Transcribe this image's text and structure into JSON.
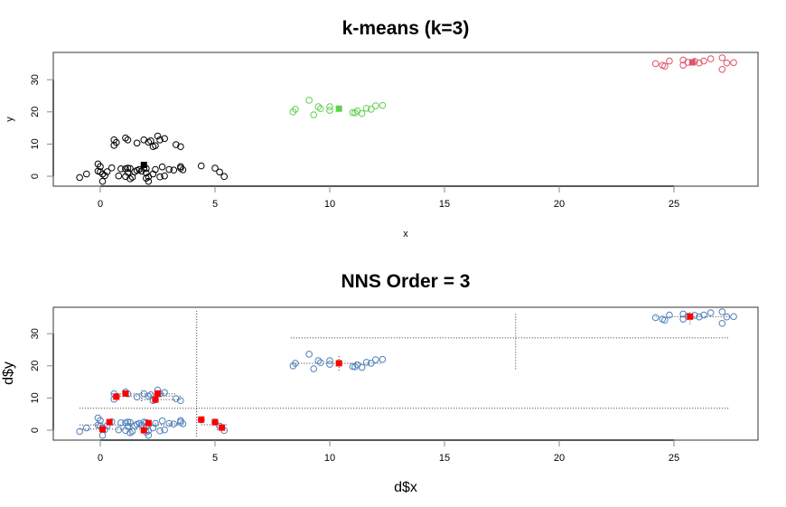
{
  "chart_data": [
    {
      "type": "scatter",
      "title": "k-means (k=3)",
      "xlabel": "x",
      "ylabel": "y",
      "xlim": [
        -2,
        28.5
      ],
      "ylim": [
        -3,
        38
      ],
      "x_ticks": [
        0,
        5,
        10,
        15,
        20,
        25
      ],
      "y_ticks": [
        0,
        10,
        20,
        30
      ],
      "grid": false,
      "legend": null,
      "series": [
        {
          "name": "cluster 1",
          "color": "#000000",
          "marker": "open-circle",
          "points": [
            [
              -0.9,
              -0.4
            ],
            [
              -0.6,
              0.7
            ],
            [
              -0.1,
              3.8
            ],
            [
              0.0,
              3.0
            ],
            [
              -0.1,
              1.6
            ],
            [
              0.0,
              1.4
            ],
            [
              0.1,
              0.7
            ],
            [
              0.2,
              0.2
            ],
            [
              0.1,
              -1.6
            ],
            [
              0.3,
              1.4
            ],
            [
              0.5,
              2.6
            ],
            [
              0.8,
              0.1
            ],
            [
              0.9,
              2.3
            ],
            [
              1.1,
              2.3
            ],
            [
              1.2,
              2.5
            ],
            [
              1.3,
              2.4
            ],
            [
              1.1,
              -0.1
            ],
            [
              1.2,
              1.2
            ],
            [
              1.3,
              -0.8
            ],
            [
              1.4,
              -0.3
            ],
            [
              1.5,
              1.4
            ],
            [
              1.6,
              1.8
            ],
            [
              1.7,
              2.1
            ],
            [
              1.8,
              1.6
            ],
            [
              1.9,
              2.5
            ],
            [
              2.0,
              2.4
            ],
            [
              2.0,
              1.0
            ],
            [
              2.0,
              -0.6
            ],
            [
              2.1,
              -0.2
            ],
            [
              2.1,
              -1.6
            ],
            [
              2.3,
              0.7
            ],
            [
              2.4,
              2.1
            ],
            [
              2.6,
              -0.2
            ],
            [
              2.7,
              2.9
            ],
            [
              2.8,
              0.1
            ],
            [
              3.0,
              2.1
            ],
            [
              3.2,
              1.9
            ],
            [
              3.5,
              3.0
            ],
            [
              3.5,
              2.5
            ],
            [
              3.6,
              2.0
            ],
            [
              4.4,
              3.2
            ],
            [
              5.0,
              2.5
            ],
            [
              5.2,
              1.3
            ],
            [
              5.4,
              -0.1
            ],
            [
              0.6,
              11.3
            ],
            [
              0.7,
              10.5
            ],
            [
              0.6,
              9.6
            ],
            [
              1.1,
              11.9
            ],
            [
              1.2,
              11.3
            ],
            [
              1.6,
              10.3
            ],
            [
              1.9,
              11.3
            ],
            [
              2.1,
              10.6
            ],
            [
              2.2,
              11.0
            ],
            [
              2.3,
              9.2
            ],
            [
              2.4,
              9.5
            ],
            [
              2.5,
              12.5
            ],
            [
              2.6,
              11.3
            ],
            [
              2.8,
              11.7
            ],
            [
              3.3,
              9.8
            ],
            [
              3.5,
              9.2
            ]
          ],
          "center": [
            1.9,
            3.5
          ]
        },
        {
          "name": "cluster 2",
          "color": "#61D04F",
          "marker": "open-circle",
          "points": [
            [
              8.4,
              20.0
            ],
            [
              8.5,
              20.8
            ],
            [
              9.1,
              23.6
            ],
            [
              9.3,
              19.1
            ],
            [
              9.5,
              21.6
            ],
            [
              9.6,
              21.0
            ],
            [
              10.0,
              21.6
            ],
            [
              10.0,
              20.5
            ],
            [
              11.0,
              19.8
            ],
            [
              11.1,
              19.7
            ],
            [
              11.2,
              20.3
            ],
            [
              11.4,
              19.5
            ],
            [
              11.6,
              21.1
            ],
            [
              11.8,
              20.8
            ],
            [
              12.0,
              21.9
            ],
            [
              12.3,
              22.0
            ]
          ],
          "center": [
            10.4,
            21.0
          ]
        },
        {
          "name": "cluster 3",
          "color": "#DF536B",
          "marker": "open-circle",
          "points": [
            [
              24.2,
              35.0
            ],
            [
              24.5,
              34.5
            ],
            [
              24.6,
              34.2
            ],
            [
              24.8,
              35.8
            ],
            [
              25.4,
              36.1
            ],
            [
              25.4,
              34.5
            ],
            [
              25.6,
              35.4
            ],
            [
              25.9,
              35.7
            ],
            [
              26.1,
              35.2
            ],
            [
              26.3,
              35.8
            ],
            [
              26.6,
              36.5
            ],
            [
              27.1,
              36.8
            ],
            [
              27.3,
              35.2
            ],
            [
              27.1,
              33.2
            ],
            [
              27.6,
              35.3
            ]
          ],
          "center": [
            25.8,
            35.4
          ]
        }
      ]
    },
    {
      "type": "scatter",
      "title": "NNS Order = 3",
      "xlabel": "d$x",
      "ylabel": "d$y",
      "xlim": [
        -2,
        28.5
      ],
      "ylim": [
        -3,
        38
      ],
      "x_ticks": [
        0,
        5,
        10,
        15,
        20,
        25
      ],
      "y_ticks": [
        0,
        10,
        20,
        30
      ],
      "grid": false,
      "legend": null,
      "point_color": "#4F81BD",
      "centroid_color": "#FF0000",
      "partition_boundaries": {
        "vertical": [
          {
            "x": 4.2,
            "y_from": -2,
            "y_to": 37
          },
          {
            "x": 18.1,
            "y_from": 19,
            "y_to": 36.5
          }
        ],
        "horizontal": [
          {
            "y": 6.8,
            "x_from": -0.9,
            "x_to": 27.4
          },
          {
            "y": 28.7,
            "x_from": 8.3,
            "x_to": 27.4
          }
        ]
      },
      "centroids": [
        [
          0.7,
          10.4
        ],
        [
          1.1,
          11.4
        ],
        [
          2.5,
          11.4
        ],
        [
          2.4,
          9.5
        ],
        [
          0.4,
          2.5
        ],
        [
          0.1,
          0.3
        ],
        [
          2.1,
          2.2
        ],
        [
          1.9,
          0.0
        ],
        [
          4.4,
          3.3
        ],
        [
          5.0,
          2.5
        ],
        [
          5.3,
          0.8
        ],
        [
          10.4,
          20.8
        ],
        [
          25.7,
          35.3
        ]
      ]
    }
  ]
}
